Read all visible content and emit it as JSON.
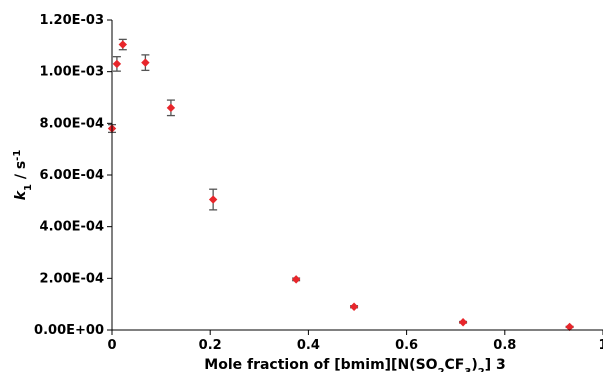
{
  "chart_data": {
    "type": "scatter",
    "xlabel": {
      "prefix": "Mole fraction of [bmim][N(SO",
      "sub1": "2",
      "mid": "CF",
      "sub2": "3",
      "close": ")",
      "sub3": "2",
      "suffix": "] 3"
    },
    "ylabel": {
      "main": "k",
      "main_sub": "1",
      "unit": " / s",
      "unit_sup": "-1"
    },
    "xlim": [
      0,
      1
    ],
    "ylim": [
      0,
      0.0012
    ],
    "x_ticks": [
      "0",
      "0.2",
      "0.4",
      "0.6",
      "0.8",
      "1"
    ],
    "y_ticks": [
      "0.00E+00",
      "2.00E-04",
      "4.00E-04",
      "6.00E-04",
      "8.00E-04",
      "1.00E-03",
      "1.20E-03"
    ],
    "grid": false,
    "marker_color": "#e8262b",
    "errorbar_color": "#555555",
    "points": [
      {
        "x": 0.0,
        "y": 0.00078,
        "err": 1.5e-05
      },
      {
        "x": 0.01,
        "y": 0.00103,
        "err": 2.8e-05
      },
      {
        "x": 0.022,
        "y": 0.001105,
        "err": 2e-05
      },
      {
        "x": 0.068,
        "y": 0.001035,
        "err": 3e-05
      },
      {
        "x": 0.12,
        "y": 0.00086,
        "err": 3e-05
      },
      {
        "x": 0.206,
        "y": 0.000505,
        "err": 4e-05
      },
      {
        "x": 0.375,
        "y": 0.000196,
        "err": 5e-06
      },
      {
        "x": 0.493,
        "y": 9e-05,
        "err": 4e-06
      },
      {
        "x": 0.715,
        "y": 3e-05,
        "err": 3e-06
      },
      {
        "x": 0.932,
        "y": 1.2e-05,
        "err": 2e-06
      }
    ]
  }
}
